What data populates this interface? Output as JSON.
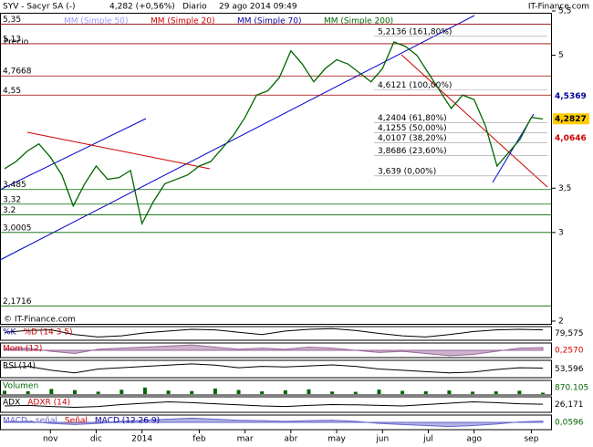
{
  "header": {
    "symbol": "SYV - Sacyr SA (-)",
    "quote": "4,282 (+0,56%)",
    "period": "Diario",
    "datetime": "29 ago 2014 09:49",
    "brand": "IT-Finance.com",
    "copyright": "© IT-Finance.com",
    "price_label": "Precio"
  },
  "chart_data": {
    "type": "line",
    "legend": [
      {
        "name": "MM (Simple 50)",
        "color": "#9999ff"
      },
      {
        "name": "MM (Simple 20)",
        "color": "#cc0000"
      },
      {
        "name": "MM (Simple 70)",
        "color": "#000099"
      },
      {
        "name": "MM (Simple 200)",
        "color": "#006600"
      }
    ],
    "categories": [
      null,
      null,
      null,
      null,
      "nov",
      null,
      null,
      null,
      "dic",
      null,
      null,
      null,
      "2014",
      null,
      null,
      null,
      null,
      "feb",
      null,
      null,
      null,
      "mar",
      null,
      null,
      null,
      "abr",
      null,
      null,
      null,
      "may",
      null,
      null,
      null,
      "jun",
      null,
      null,
      null,
      "jul",
      null,
      null,
      null,
      "ago",
      null,
      null,
      null,
      null,
      "sep",
      null
    ],
    "series": [
      {
        "name": "Precio",
        "color": "#006600",
        "values": [
          3.72,
          3.8,
          3.92,
          4.0,
          3.85,
          3.65,
          3.3,
          3.55,
          3.75,
          3.6,
          3.62,
          3.7,
          3.1,
          3.35,
          3.55,
          3.6,
          3.65,
          3.75,
          3.8,
          3.95,
          4.1,
          4.3,
          4.55,
          4.6,
          4.75,
          5.05,
          4.9,
          4.7,
          4.85,
          4.95,
          4.9,
          4.8,
          4.7,
          4.85,
          5.15,
          5.1,
          5.0,
          4.8,
          4.6,
          4.4,
          4.55,
          4.5,
          4.2,
          3.75,
          3.9,
          4.05,
          4.3,
          4.28
        ]
      }
    ],
    "ylim": [
      2,
      5.5
    ],
    "yticks": [
      {
        "value": 2,
        "label": "2"
      },
      {
        "value": 3,
        "label": "3"
      },
      {
        "value": 3.5,
        "label": "3,5"
      },
      {
        "value": 5,
        "label": "5"
      },
      {
        "value": 5.5,
        "label": "5,5"
      }
    ],
    "levels": [
      {
        "value": 5.35,
        "label": "5,35"
      },
      {
        "value": 5.13,
        "label": "5,13"
      },
      {
        "value": 4.7668,
        "label": "4,7668"
      },
      {
        "value": 4.55,
        "label": "4,55"
      },
      {
        "value": 3.485,
        "label": "3,485"
      },
      {
        "value": 3.32,
        "label": "3,32"
      },
      {
        "value": 3.2,
        "label": "3,2"
      },
      {
        "value": 3.0005,
        "label": "3,0005"
      },
      {
        "value": 2.1716,
        "label": "2,1716"
      }
    ],
    "fibonacci": [
      {
        "value": 5.2136,
        "label": "5,2136 (161,80%)"
      },
      {
        "value": 4.6121,
        "label": "4,6121 (100,00%)"
      },
      {
        "value": 4.2404,
        "label": "4,2404 (61,80%)"
      },
      {
        "value": 4.1255,
        "label": "4,1255 (50,00%)"
      },
      {
        "value": 4.0107,
        "label": "4,0107 (38,20%)"
      },
      {
        "value": 3.8686,
        "label": "3,8686 (23,60%)"
      },
      {
        "value": 3.639,
        "label": "3,639 (0,00%)"
      }
    ],
    "markers": [
      {
        "value": 4.5369,
        "label": "4,5369",
        "color": "#000099"
      },
      {
        "value": 4.2827,
        "label": "4,2827",
        "color": "#000000",
        "background": "#ffcc00"
      },
      {
        "value": 4.0646,
        "label": "4,0646",
        "color": "#cc0000"
      }
    ],
    "panels": [
      {
        "type": "line",
        "labels": [
          {
            "text": "%K",
            "color": "#000099"
          },
          {
            "text": "%D (14 3 5)",
            "color": "#cc0000"
          }
        ],
        "color": "#000000",
        "ylim": [
          0,
          100
        ],
        "values": [
          60,
          75,
          80,
          40,
          20,
          30,
          55,
          70,
          85,
          80,
          60,
          40,
          70,
          85,
          90,
          75,
          50,
          30,
          20,
          40,
          65,
          80,
          85,
          79.575
        ],
        "value_label": "79,575"
      },
      {
        "type": "area",
        "labels": [
          {
            "text": "Mom (12)",
            "color": "#cc0000"
          }
        ],
        "color": "#996699",
        "ylim": [
          -0.6,
          0.6
        ],
        "values": [
          0.1,
          0.2,
          -0.1,
          -0.3,
          0.1,
          0.2,
          0.3,
          0.4,
          0.5,
          0.3,
          0.1,
          0.2,
          0.1,
          0.3,
          0.2,
          0.0,
          -0.2,
          -0.1,
          -0.3,
          -0.5,
          -0.4,
          -0.1,
          0.2,
          0.257
        ],
        "value_label": "0,2570",
        "label_color": "#cc0000"
      },
      {
        "type": "line",
        "labels": [
          {
            "text": "RSI (14)",
            "color": "#000000"
          }
        ],
        "color": "#000000",
        "ylim": [
          20,
          80
        ],
        "values": [
          55,
          60,
          45,
          35,
          50,
          55,
          60,
          65,
          70,
          65,
          55,
          60,
          58,
          62,
          66,
          60,
          50,
          45,
          40,
          35,
          38,
          48,
          55,
          53.596
        ],
        "value_label": "53,596"
      },
      {
        "type": "bar",
        "labels": [
          {
            "text": "Volumen",
            "color": "#006600"
          }
        ],
        "color": "#006600",
        "ylim": [
          0,
          8000000
        ],
        "values": [
          2100000,
          1800000,
          3200000,
          2500000,
          1500000,
          2700000,
          4100000,
          2200000,
          1900000,
          3500000,
          2600000,
          1700000,
          2400000,
          3000000,
          1600000,
          1400000,
          2800000,
          2000000,
          1800000,
          2300000,
          1500000,
          1700000,
          2100000,
          870105
        ],
        "value_label": "870.105",
        "label_color": "#006600"
      },
      {
        "type": "line",
        "labels": [
          {
            "text": "ADX",
            "color": "#000000"
          },
          {
            "text": "ADXR (14)",
            "color": "#cc0000"
          }
        ],
        "color": "#000000",
        "ylim": [
          0,
          50
        ],
        "values": [
          20,
          22,
          18,
          15,
          18,
          25,
          30,
          35,
          32,
          28,
          24,
          20,
          18,
          22,
          25,
          24,
          22,
          20,
          25,
          30,
          35,
          32,
          28,
          26.171
        ],
        "value_label": "26,171"
      },
      {
        "type": "area",
        "labels": [
          {
            "text": "MACD - señal",
            "color": "#6666cc"
          },
          {
            "text": "Señal",
            "color": "#cc0000"
          },
          {
            "text": "MACD (12 26 9)",
            "color": "#000099"
          }
        ],
        "color": "#6666cc",
        "ylim": [
          -0.3,
          0.3
        ],
        "values": [
          0.02,
          0.05,
          -0.05,
          -0.1,
          -0.05,
          0.05,
          0.1,
          0.15,
          0.2,
          0.15,
          0.1,
          0.08,
          0.05,
          0.08,
          0.1,
          0.05,
          -0.05,
          -0.1,
          -0.15,
          -0.2,
          -0.15,
          -0.08,
          0.02,
          0.0596
        ],
        "value_label": "0,0596",
        "label_color": "#006600"
      }
    ]
  }
}
